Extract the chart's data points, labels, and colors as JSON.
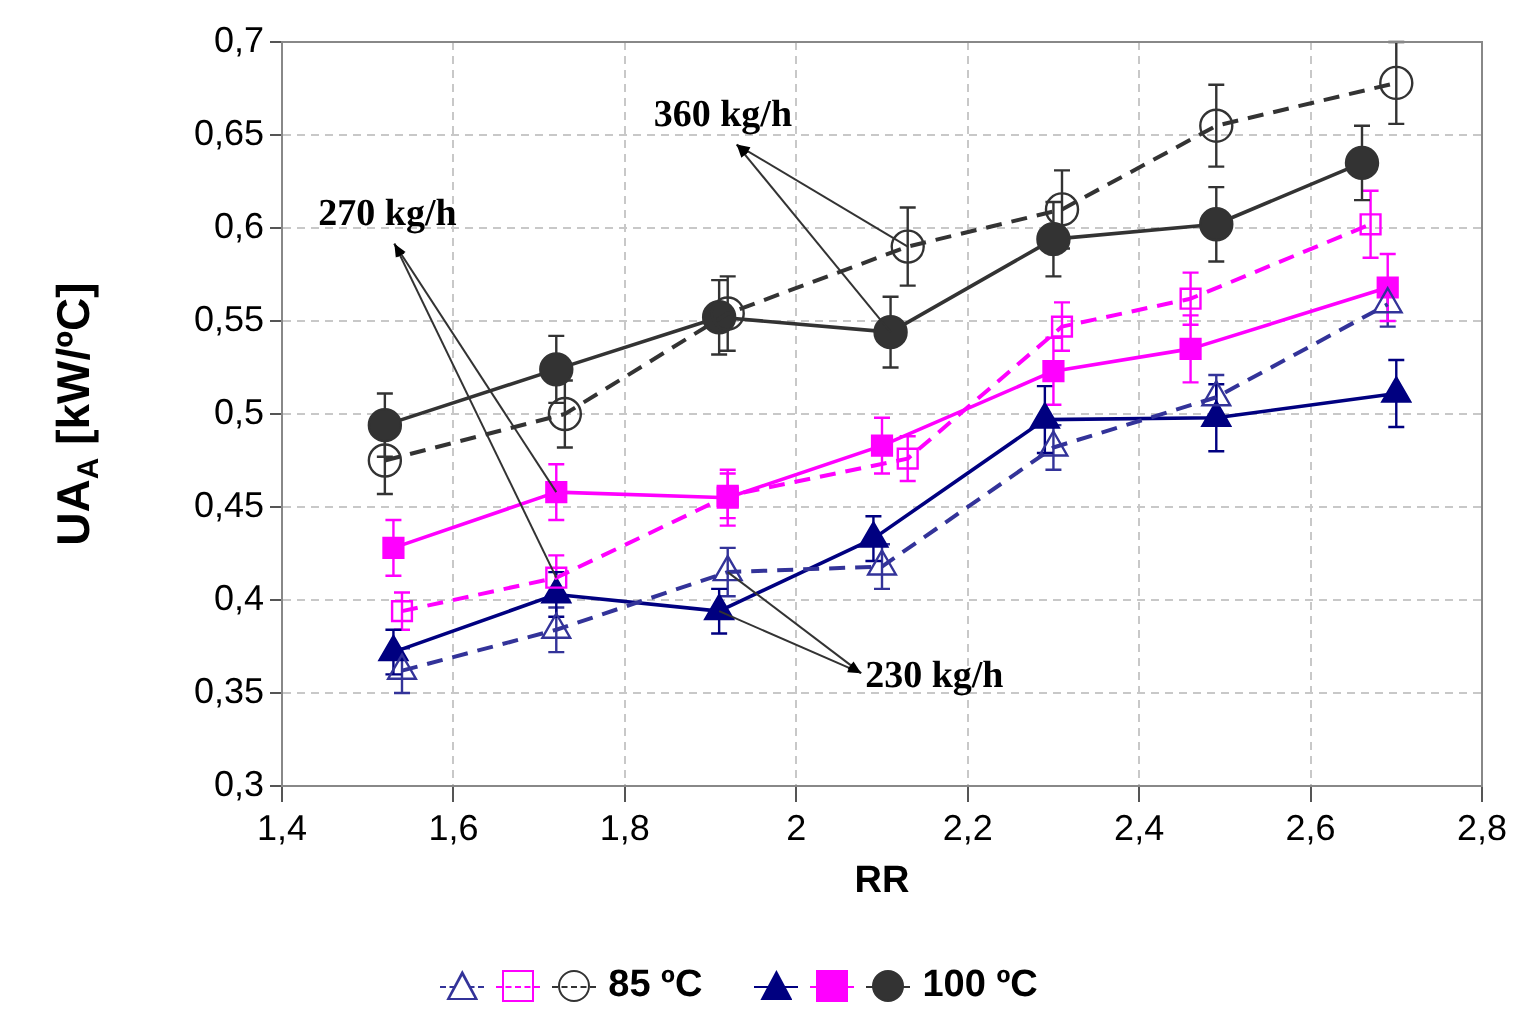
{
  "chart_data": {
    "type": "line",
    "xlabel": "RR",
    "ylabel": "UA$_{A}$ [kW/ºC]",
    "xlim": [
      1.4,
      2.8
    ],
    "xticks": [
      {
        "value": 1.4,
        "label": "1,4"
      },
      {
        "value": 1.6,
        "label": "1,6"
      },
      {
        "value": 1.8,
        "label": "1,8"
      },
      {
        "value": 2,
        "label": "2"
      },
      {
        "value": 2.2,
        "label": "2,2"
      },
      {
        "value": 2.4,
        "label": "2,4"
      },
      {
        "value": 2.6,
        "label": "2,6"
      },
      {
        "value": 2.8,
        "label": "2,8"
      }
    ],
    "ylim": [
      0.3,
      0.7
    ],
    "yticks": [
      {
        "value": 0.3,
        "label": "0,3"
      },
      {
        "value": 0.35,
        "label": "0,35"
      },
      {
        "value": 0.4,
        "label": "0,4"
      },
      {
        "value": 0.45,
        "label": "0,45"
      },
      {
        "value": 0.5,
        "label": "0,5"
      },
      {
        "value": 0.55,
        "label": "0,55"
      },
      {
        "value": 0.6,
        "label": "0,6"
      },
      {
        "value": 0.65,
        "label": "0,65"
      },
      {
        "value": 0.7,
        "label": "0,7"
      }
    ],
    "grid": true,
    "legend": "bottom",
    "annotations": [
      {
        "text": "360 kg/h",
        "x": 2.13,
        "y": 0.59
      },
      {
        "text": "270 kg/h",
        "x": 1.72,
        "y": 0.412
      },
      {
        "text": "230 kg/h",
        "x": 1.91,
        "y": 0.394
      }
    ],
    "series": [
      {
        "color": "#333399",
        "marker": "triangle",
        "line_style": "dashed",
        "x": [
          1.54,
          1.72,
          1.92,
          2.1,
          2.3,
          2.49,
          2.69
        ],
        "values": [
          0.362,
          0.384,
          0.415,
          0.418,
          0.482,
          0.509,
          0.559
        ],
        "errors": [
          0.012,
          0.012,
          0.013,
          0.012,
          0.012,
          0.012,
          0.012
        ]
      },
      {
        "color": "#ff00ff",
        "marker": "square",
        "line_style": "dashed",
        "x": [
          1.54,
          1.72,
          1.92,
          2.13,
          2.31,
          2.46,
          2.67
        ],
        "values": [
          0.394,
          0.412,
          0.456,
          0.476,
          0.547,
          0.562,
          0.602
        ],
        "errors": [
          0.01,
          0.012,
          0.012,
          0.012,
          0.013,
          0.014,
          0.018
        ]
      },
      {
        "name": "85 ºC",
        "color": "#333333",
        "marker": "circle",
        "line_style": "dashed",
        "x": [
          1.52,
          1.73,
          1.92,
          2.13,
          2.31,
          2.49,
          2.7
        ],
        "values": [
          0.475,
          0.5,
          0.554,
          0.59,
          0.61,
          0.655,
          0.678
        ],
        "errors": [
          0.018,
          0.018,
          0.02,
          0.021,
          0.021,
          0.022,
          0.022
        ]
      },
      {
        "color": "#000080",
        "marker": "triangle",
        "line_style": "solid",
        "x": [
          1.53,
          1.72,
          1.91,
          2.09,
          2.29,
          2.49,
          2.7
        ],
        "values": [
          0.372,
          0.403,
          0.394,
          0.433,
          0.497,
          0.498,
          0.511
        ],
        "errors": [
          0.012,
          0.012,
          0.012,
          0.012,
          0.018,
          0.018,
          0.018
        ]
      },
      {
        "color": "#ff00ff",
        "marker": "square",
        "line_style": "solid",
        "x": [
          1.53,
          1.72,
          1.92,
          2.1,
          2.3,
          2.46,
          2.69
        ],
        "values": [
          0.428,
          0.458,
          0.455,
          0.483,
          0.523,
          0.535,
          0.568
        ],
        "errors": [
          0.015,
          0.015,
          0.015,
          0.015,
          0.018,
          0.018,
          0.018
        ]
      },
      {
        "name": "100 ºC",
        "color": "#333333",
        "marker": "circle",
        "line_style": "solid",
        "x": [
          1.52,
          1.72,
          1.91,
          2.11,
          2.3,
          2.49,
          2.66
        ],
        "values": [
          0.494,
          0.524,
          0.552,
          0.544,
          0.594,
          0.602,
          0.635
        ],
        "errors": [
          0.017,
          0.018,
          0.02,
          0.019,
          0.02,
          0.02,
          0.02
        ]
      }
    ]
  }
}
